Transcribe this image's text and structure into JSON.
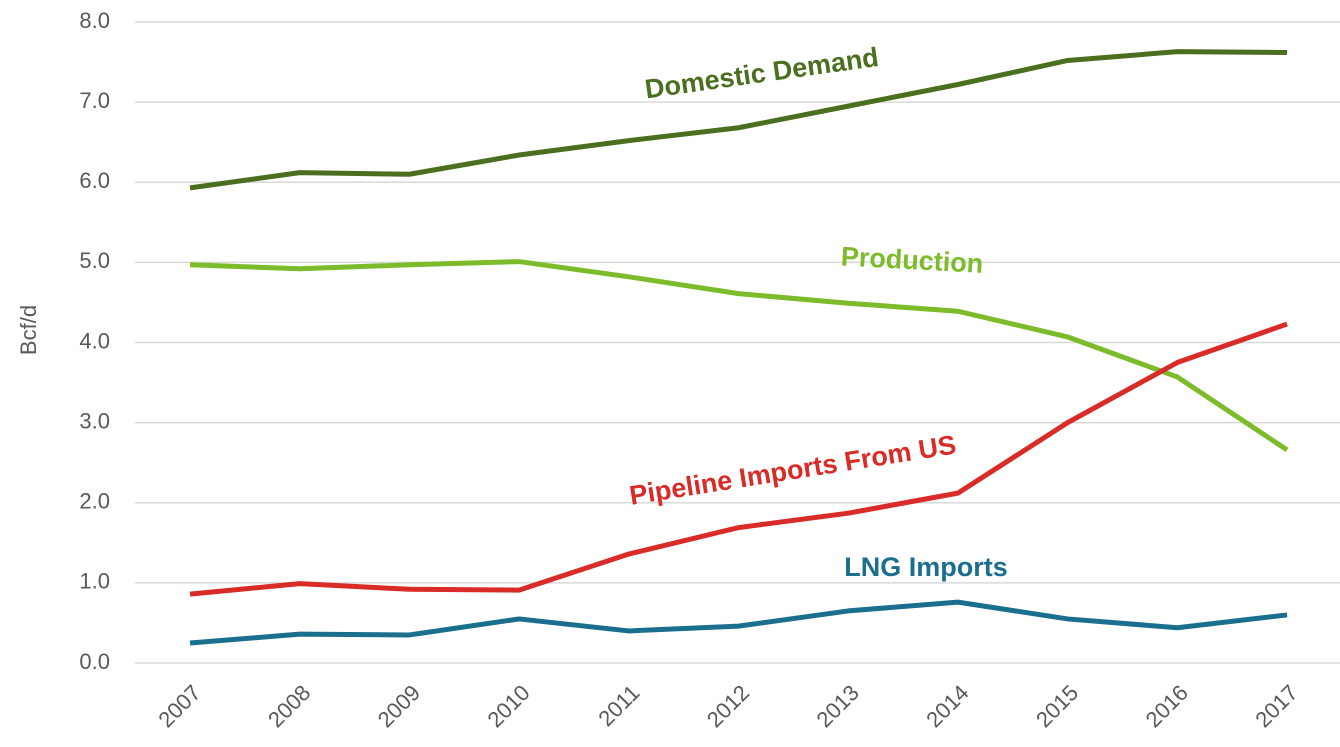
{
  "chart_data": {
    "type": "line",
    "y_label": "Bcf/d",
    "categories": [
      "2007",
      "2008",
      "2009",
      "2010",
      "2011",
      "2012",
      "2013",
      "2014",
      "2015",
      "2016",
      "2017"
    ],
    "series": [
      {
        "name": "Domestic Demand",
        "color": "#4a6f1e",
        "values": [
          5.93,
          6.12,
          6.1,
          6.34,
          6.52,
          6.68,
          6.95,
          7.22,
          7.52,
          7.63,
          7.62
        ]
      },
      {
        "name": "Production",
        "color": "#7cbb2a",
        "values": [
          4.97,
          4.92,
          4.97,
          5.01,
          4.82,
          4.61,
          4.49,
          4.39,
          4.07,
          3.57,
          2.66
        ]
      },
      {
        "name": "Pipeline Imports From US",
        "color": "#d92b27",
        "values": [
          0.86,
          0.99,
          0.92,
          0.91,
          1.36,
          1.69,
          1.87,
          2.12,
          3.0,
          3.75,
          4.23
        ]
      },
      {
        "name": "LNG Imports",
        "color": "#1a6e8e",
        "values": [
          0.25,
          0.36,
          0.35,
          0.55,
          0.4,
          0.46,
          0.65,
          0.76,
          0.55,
          0.44,
          0.6
        ]
      }
    ],
    "ylim": [
      0,
      8
    ],
    "yticks": [
      {
        "value": 0,
        "label": "0.0"
      },
      {
        "value": 1,
        "label": "1.0"
      },
      {
        "value": 2,
        "label": "2.0"
      },
      {
        "value": 3,
        "label": "3.0"
      },
      {
        "value": 4,
        "label": "4.0"
      },
      {
        "value": 5,
        "label": "5.0"
      },
      {
        "value": 6,
        "label": "6.0"
      },
      {
        "value": 7,
        "label": "7.0"
      },
      {
        "value": 8,
        "label": "8.0"
      }
    ],
    "grid": true
  }
}
